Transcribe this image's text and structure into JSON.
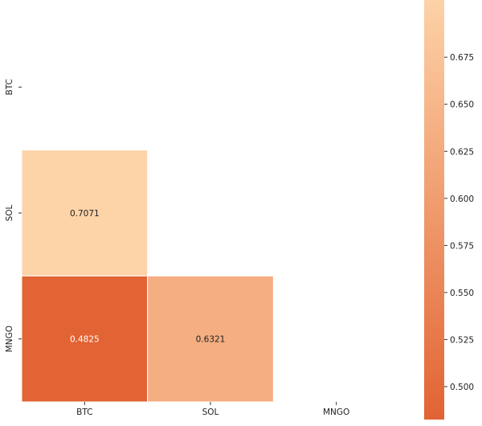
{
  "chart_data": {
    "type": "heatmap",
    "title": "",
    "xlabel": "",
    "ylabel": "",
    "x_categories": [
      "BTC",
      "SOL",
      "MNGO"
    ],
    "y_categories": [
      "BTC",
      "SOL",
      "MNGO"
    ],
    "mask": "upper-triangle-including-diagonal",
    "cells": [
      {
        "row": "SOL",
        "col": "BTC",
        "value": 0.7071,
        "label": "0.7071"
      },
      {
        "row": "MNGO",
        "col": "BTC",
        "value": 0.4825,
        "label": "0.4825"
      },
      {
        "row": "MNGO",
        "col": "SOL",
        "value": 0.6321,
        "label": "0.6321"
      }
    ],
    "colorbar": {
      "vmin": 0.4825,
      "vmax": 0.7071,
      "ticks": [
        "0.500",
        "0.525",
        "0.550",
        "0.575",
        "0.600",
        "0.625",
        "0.650",
        "0.675"
      ],
      "color_low": "#e26333",
      "color_high": "#fdd3a8"
    },
    "annotation_colors": {
      "dark_cell": "#ffffff",
      "light_cell": "#222222"
    },
    "grid": false
  }
}
